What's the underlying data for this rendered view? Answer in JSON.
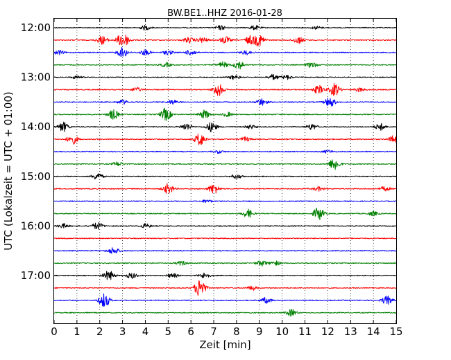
{
  "chart_data": {
    "type": "line",
    "title": "BW.BE1..HHZ 2016-01-28",
    "xlabel": "Zeit  [min]",
    "ylabel": "UTC (Lokalzeit = UTC + 01:00)",
    "xlim": [
      0,
      15
    ],
    "x_ticks": [
      "0",
      "1",
      "2",
      "3",
      "4",
      "5",
      "6",
      "7",
      "8",
      "9",
      "10",
      "11",
      "12",
      "13",
      "14",
      "15"
    ],
    "y_ticks": [
      "12:00",
      "13:00",
      "14:00",
      "15:00",
      "16:00",
      "17:00"
    ],
    "grid": true,
    "row_interval_minutes": 15,
    "colors": [
      "#000000",
      "#ff0000",
      "#0000ff",
      "#008000"
    ],
    "series": [
      {
        "start": "12:00",
        "bursts": [
          {
            "x": 4.0,
            "a": 3
          },
          {
            "x": 7.3,
            "a": 3
          },
          {
            "x": 8.8,
            "a": 3
          },
          {
            "x": 11.5,
            "a": 2
          }
        ]
      },
      {
        "start": "12:15",
        "bursts": [
          {
            "x": 2.1,
            "a": 6
          },
          {
            "x": 3.1,
            "a": 7
          },
          {
            "x": 2.9,
            "a": 5
          },
          {
            "x": 5.9,
            "a": 4
          },
          {
            "x": 6.5,
            "a": 4
          },
          {
            "x": 7.5,
            "a": 5
          },
          {
            "x": 8.6,
            "a": 6
          },
          {
            "x": 9.0,
            "a": 8
          },
          {
            "x": 10.7,
            "a": 5
          }
        ]
      },
      {
        "start": "12:30",
        "bursts": [
          {
            "x": 0.2,
            "a": 3
          },
          {
            "x": 3.0,
            "a": 7
          },
          {
            "x": 4.0,
            "a": 4
          },
          {
            "x": 5.0,
            "a": 3
          },
          {
            "x": 6.0,
            "a": 4
          },
          {
            "x": 8.4,
            "a": 3
          }
        ]
      },
      {
        "start": "12:45",
        "bursts": [
          {
            "x": 4.9,
            "a": 3
          },
          {
            "x": 7.4,
            "a": 4
          },
          {
            "x": 8.1,
            "a": 6
          },
          {
            "x": 11.3,
            "a": 4
          }
        ]
      },
      {
        "start": "13:00",
        "bursts": [
          {
            "x": 1.0,
            "a": 2
          },
          {
            "x": 7.9,
            "a": 3
          },
          {
            "x": 9.6,
            "a": 4
          },
          {
            "x": 10.2,
            "a": 3
          }
        ]
      },
      {
        "start": "13:15",
        "bursts": [
          {
            "x": 3.6,
            "a": 3
          },
          {
            "x": 7.2,
            "a": 9
          },
          {
            "x": 11.6,
            "a": 6
          },
          {
            "x": 12.3,
            "a": 9
          },
          {
            "x": 13.4,
            "a": 3
          }
        ]
      },
      {
        "start": "13:30",
        "bursts": [
          {
            "x": 3.0,
            "a": 3
          },
          {
            "x": 5.2,
            "a": 3
          },
          {
            "x": 9.1,
            "a": 5
          },
          {
            "x": 12.1,
            "a": 7
          }
        ]
      },
      {
        "start": "13:45",
        "bursts": [
          {
            "x": 2.6,
            "a": 7
          },
          {
            "x": 4.9,
            "a": 9
          },
          {
            "x": 6.6,
            "a": 6
          },
          {
            "x": 7.6,
            "a": 3
          }
        ]
      },
      {
        "start": "14:00",
        "bursts": [
          {
            "x": 0.4,
            "a": 7
          },
          {
            "x": 5.8,
            "a": 5
          },
          {
            "x": 6.9,
            "a": 7
          },
          {
            "x": 8.6,
            "a": 3
          },
          {
            "x": 11.3,
            "a": 4
          },
          {
            "x": 14.3,
            "a": 5
          }
        ]
      },
      {
        "start": "14:15",
        "bursts": [
          {
            "x": 0.8,
            "a": 7
          },
          {
            "x": 6.4,
            "a": 9
          },
          {
            "x": 8.4,
            "a": 3
          },
          {
            "x": 14.9,
            "a": 5
          }
        ]
      },
      {
        "start": "14:30",
        "bursts": [
          {
            "x": 7.2,
            "a": 2
          },
          {
            "x": 12.0,
            "a": 2
          }
        ]
      },
      {
        "start": "14:45",
        "bursts": [
          {
            "x": 2.8,
            "a": 3
          },
          {
            "x": 12.3,
            "a": 9
          }
        ]
      },
      {
        "start": "15:00",
        "bursts": [
          {
            "x": 1.9,
            "a": 5
          },
          {
            "x": 8.0,
            "a": 3
          }
        ]
      },
      {
        "start": "15:15",
        "bursts": [
          {
            "x": 5.0,
            "a": 7
          },
          {
            "x": 7.0,
            "a": 7
          },
          {
            "x": 11.6,
            "a": 3
          },
          {
            "x": 14.5,
            "a": 3
          }
        ]
      },
      {
        "start": "15:30",
        "bursts": [
          {
            "x": 6.7,
            "a": 2
          }
        ]
      },
      {
        "start": "15:45",
        "bursts": [
          {
            "x": 8.5,
            "a": 6
          },
          {
            "x": 11.6,
            "a": 9
          },
          {
            "x": 14.0,
            "a": 3
          }
        ]
      },
      {
        "start": "16:00",
        "bursts": [
          {
            "x": 0.4,
            "a": 3
          },
          {
            "x": 1.9,
            "a": 5
          },
          {
            "x": 4.0,
            "a": 3
          }
        ]
      },
      {
        "start": "16:15",
        "bursts": []
      },
      {
        "start": "16:30",
        "bursts": [
          {
            "x": 2.6,
            "a": 5
          }
        ]
      },
      {
        "start": "16:45",
        "bursts": [
          {
            "x": 5.6,
            "a": 3
          },
          {
            "x": 9.1,
            "a": 4
          },
          {
            "x": 9.7,
            "a": 3
          }
        ]
      },
      {
        "start": "17:00",
        "bursts": [
          {
            "x": 2.4,
            "a": 7
          },
          {
            "x": 3.4,
            "a": 4
          },
          {
            "x": 6.6,
            "a": 4
          },
          {
            "x": 5.2,
            "a": 3
          }
        ]
      },
      {
        "start": "17:15",
        "bursts": [
          {
            "x": 6.4,
            "a": 14
          },
          {
            "x": 8.7,
            "a": 3
          }
        ]
      },
      {
        "start": "17:30",
        "bursts": [
          {
            "x": 2.2,
            "a": 10
          },
          {
            "x": 9.3,
            "a": 4
          },
          {
            "x": 14.6,
            "a": 6
          }
        ]
      },
      {
        "start": "17:45",
        "bursts": [
          {
            "x": 10.4,
            "a": 5
          }
        ]
      }
    ]
  }
}
